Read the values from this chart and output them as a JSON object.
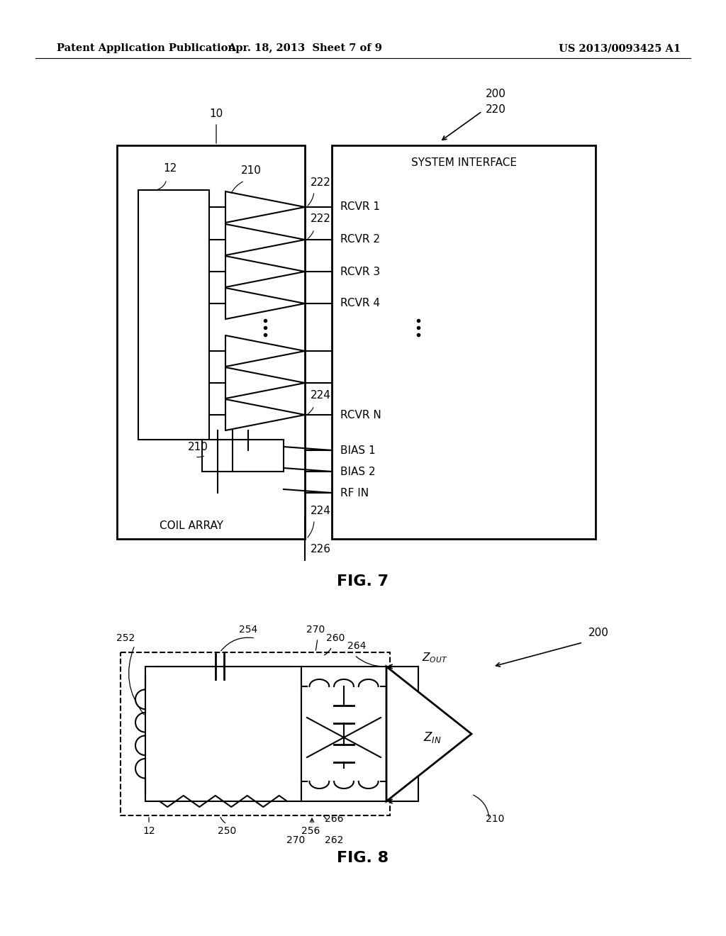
{
  "bg_color": "#ffffff",
  "header_left": "Patent Application Publication",
  "header_mid": "Apr. 18, 2013  Sheet 7 of 9",
  "header_right": "US 2013/0093425 A1",
  "fig7_caption": "FIG. 7",
  "fig8_caption": "FIG. 8"
}
